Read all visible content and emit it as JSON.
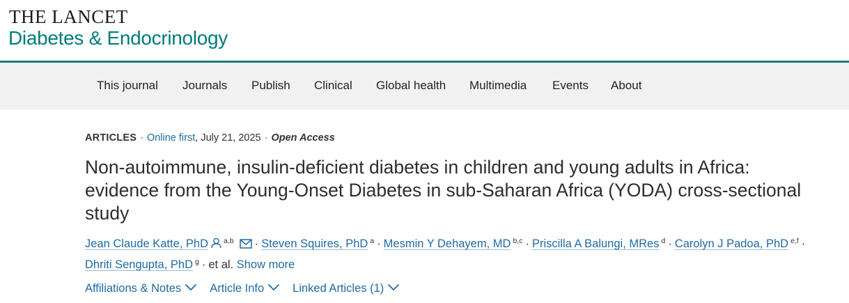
{
  "brand": {
    "top": "THE LANCET",
    "journal": "Diabetes & Endocrinology"
  },
  "nav": {
    "items": [
      "This journal",
      "Journals",
      "Publish",
      "Clinical",
      "Global health",
      "Multimedia",
      "Events",
      "About"
    ]
  },
  "article": {
    "type": "ARTICLES",
    "online_first": "Online first",
    "date": "July 21, 2025",
    "access": "Open Access",
    "title": "Non-autoimmune, insulin-deficient diabetes in children and young adults in Africa: evidence from the Young-Onset Diabetes in sub-Saharan Africa (YODA) cross-sectional study"
  },
  "authors": {
    "list": [
      {
        "name": "Jean Claude Katte, PhD",
        "aff": "a,b"
      },
      {
        "name": "Steven Squires, PhD",
        "aff": "a"
      },
      {
        "name": "Mesmin Y Dehayem, MD",
        "aff": "b,c"
      },
      {
        "name": "Priscilla A Balungi, MRes",
        "aff": "d"
      },
      {
        "name": "Carolyn J Padoa, PhD",
        "aff": "e,f"
      },
      {
        "name": "Dhriti Sengupta, PhD",
        "aff": "g"
      }
    ],
    "et_al": "et al.",
    "show_more": "Show more"
  },
  "accordions": {
    "affiliations": "Affiliations & Notes",
    "article_info": "Article Info",
    "linked": "Linked Articles (1)"
  },
  "colors": {
    "accent_teal": "#007c7a",
    "link_blue": "#1f6aa5",
    "nav_bg": "#f1f1f1"
  },
  "icons": {
    "person": "person-icon",
    "email": "envelope-icon",
    "chevron": "chevron-down-icon"
  }
}
